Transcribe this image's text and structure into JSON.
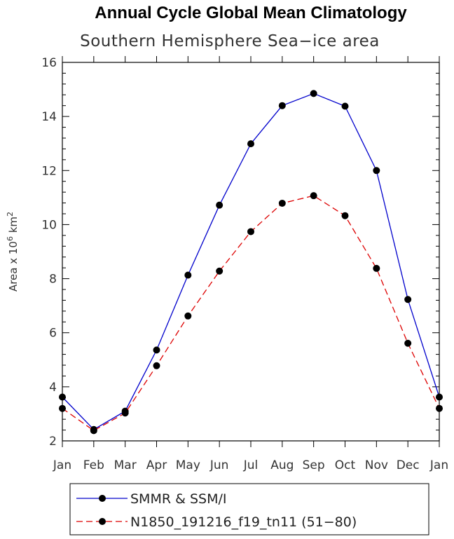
{
  "chart_data": {
    "type": "line",
    "title": "Annual Cycle Global Mean Climatology",
    "subtitle": "Southern Hemisphere Sea−ice area",
    "ylabel": {
      "prefix": "Area x 10",
      "exp1": "6",
      "mid": " km",
      "exp2": "2"
    },
    "categories": [
      "Jan",
      "Feb",
      "Mar",
      "Apr",
      "May",
      "Jun",
      "Jul",
      "Aug",
      "Sep",
      "Oct",
      "Nov",
      "Dec",
      "Jan"
    ],
    "ylim": [
      2,
      16
    ],
    "yticks": [
      "2",
      "4",
      "6",
      "8",
      "10",
      "12",
      "14",
      "16"
    ],
    "grid": false,
    "legend_position": "bottom",
    "series": [
      {
        "name": "SMMR & SSM/I",
        "color": "#0000cc",
        "style": "solid",
        "values": [
          3.62,
          2.42,
          3.1,
          5.36,
          8.13,
          10.72,
          12.99,
          14.4,
          14.85,
          14.38,
          12.0,
          7.23,
          3.62
        ]
      },
      {
        "name": "N1850_191216_f19_tn11 (51−80)",
        "color": "#dd0000",
        "style": "dashed",
        "values": [
          3.2,
          2.38,
          3.03,
          4.78,
          6.62,
          8.28,
          9.74,
          10.79,
          11.07,
          10.33,
          8.38,
          5.61,
          3.2
        ]
      }
    ]
  }
}
